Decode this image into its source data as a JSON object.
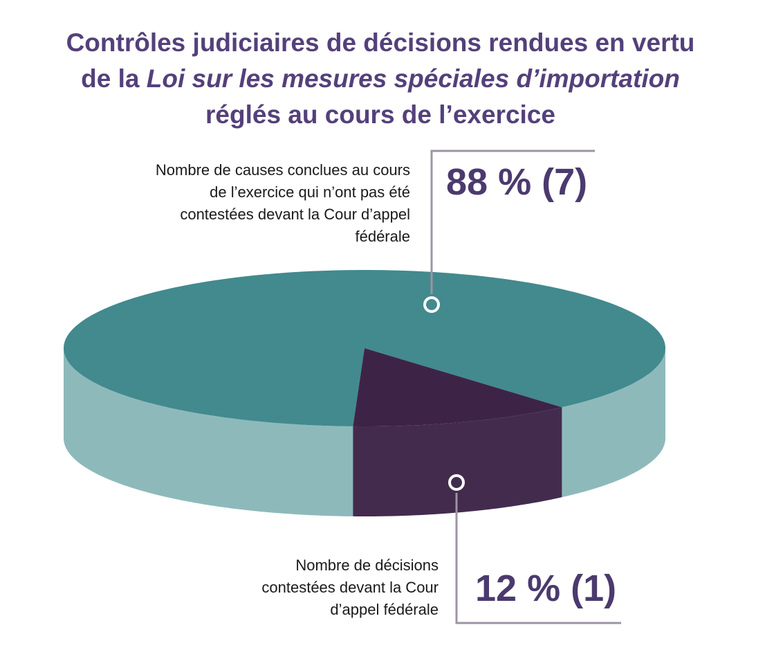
{
  "chart_data": {
    "type": "pie",
    "title": [
      "Contrôles judiciaires de décisions rendues en vertu de la",
      "Loi sur les mesures spéciales d’importation",
      "réglés au cours de l’exercice"
    ],
    "categories": [
      "Nombre de causes conclues au cours de l’exercice qui n’ont pas été contestées devant la Cour d’appel fédérale",
      "Nombre de décisions contestées devant la Cour d’appel fédérale"
    ],
    "values": [
      88,
      12
    ],
    "value_labels": [
      "88 % (7)",
      "12 % (1)"
    ],
    "colors": [
      "#428a8e",
      "#3d2447"
    ]
  }
}
